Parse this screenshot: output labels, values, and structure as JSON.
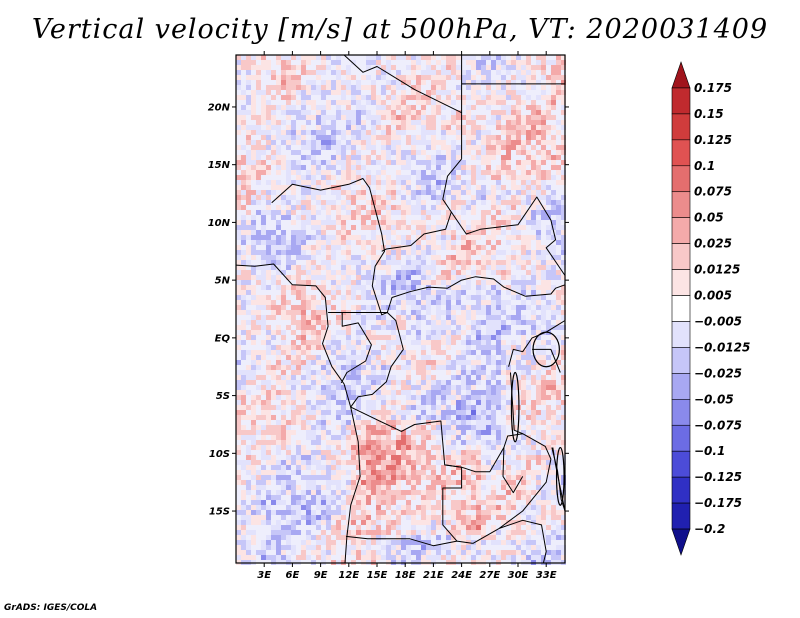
{
  "chart_data": {
    "type": "heatmap",
    "title": "Vertical velocity [m/s] at 500hPa, VT: 2020031409",
    "variable": "Vertical velocity",
    "units": "m/s",
    "level": "500hPa",
    "valid_time": "2020031409",
    "xlabel": "",
    "ylabel": "",
    "lon_range": [
      0,
      35
    ],
    "lat_range": [
      -19.5,
      24.5
    ],
    "x_ticks": [
      {
        "value": 3,
        "label": "3E"
      },
      {
        "value": 6,
        "label": "6E"
      },
      {
        "value": 9,
        "label": "9E"
      },
      {
        "value": 12,
        "label": "12E"
      },
      {
        "value": 15,
        "label": "15E"
      },
      {
        "value": 18,
        "label": "18E"
      },
      {
        "value": 21,
        "label": "21E"
      },
      {
        "value": 24,
        "label": "24E"
      },
      {
        "value": 27,
        "label": "27E"
      },
      {
        "value": 30,
        "label": "30E"
      },
      {
        "value": 33,
        "label": "33E"
      }
    ],
    "y_ticks": [
      {
        "value": 20,
        "label": "20N"
      },
      {
        "value": 15,
        "label": "15N"
      },
      {
        "value": 10,
        "label": "10N"
      },
      {
        "value": 5,
        "label": "5N"
      },
      {
        "value": 0,
        "label": "EQ"
      },
      {
        "value": -5,
        "label": "5S"
      },
      {
        "value": -10,
        "label": "10S"
      },
      {
        "value": -15,
        "label": "15S"
      }
    ],
    "colorbar": {
      "levels": [
        "0.175",
        "0.15",
        "0.125",
        "0.1",
        "0.075",
        "0.05",
        "0.025",
        "0.0125",
        "0.005",
        "-0.005",
        "-0.0125",
        "-0.025",
        "-0.05",
        "-0.075",
        "-0.1",
        "-0.125",
        "-0.175",
        "-0.2"
      ],
      "colors": [
        "#a0141c",
        "#c02a2e",
        "#d03c3c",
        "#e05252",
        "#e46e6e",
        "#ec8c8c",
        "#f4aaaa",
        "#f8c8c8",
        "#fce4e4",
        "#ffffff",
        "#e2e2fc",
        "#c6c6f8",
        "#a8a8f2",
        "#8a8aec",
        "#6c6ce4",
        "#4c4cd8",
        "#3030c4",
        "#2020b0",
        "#10108c"
      ]
    }
  },
  "footer": "GrADS: IGES/COLA"
}
